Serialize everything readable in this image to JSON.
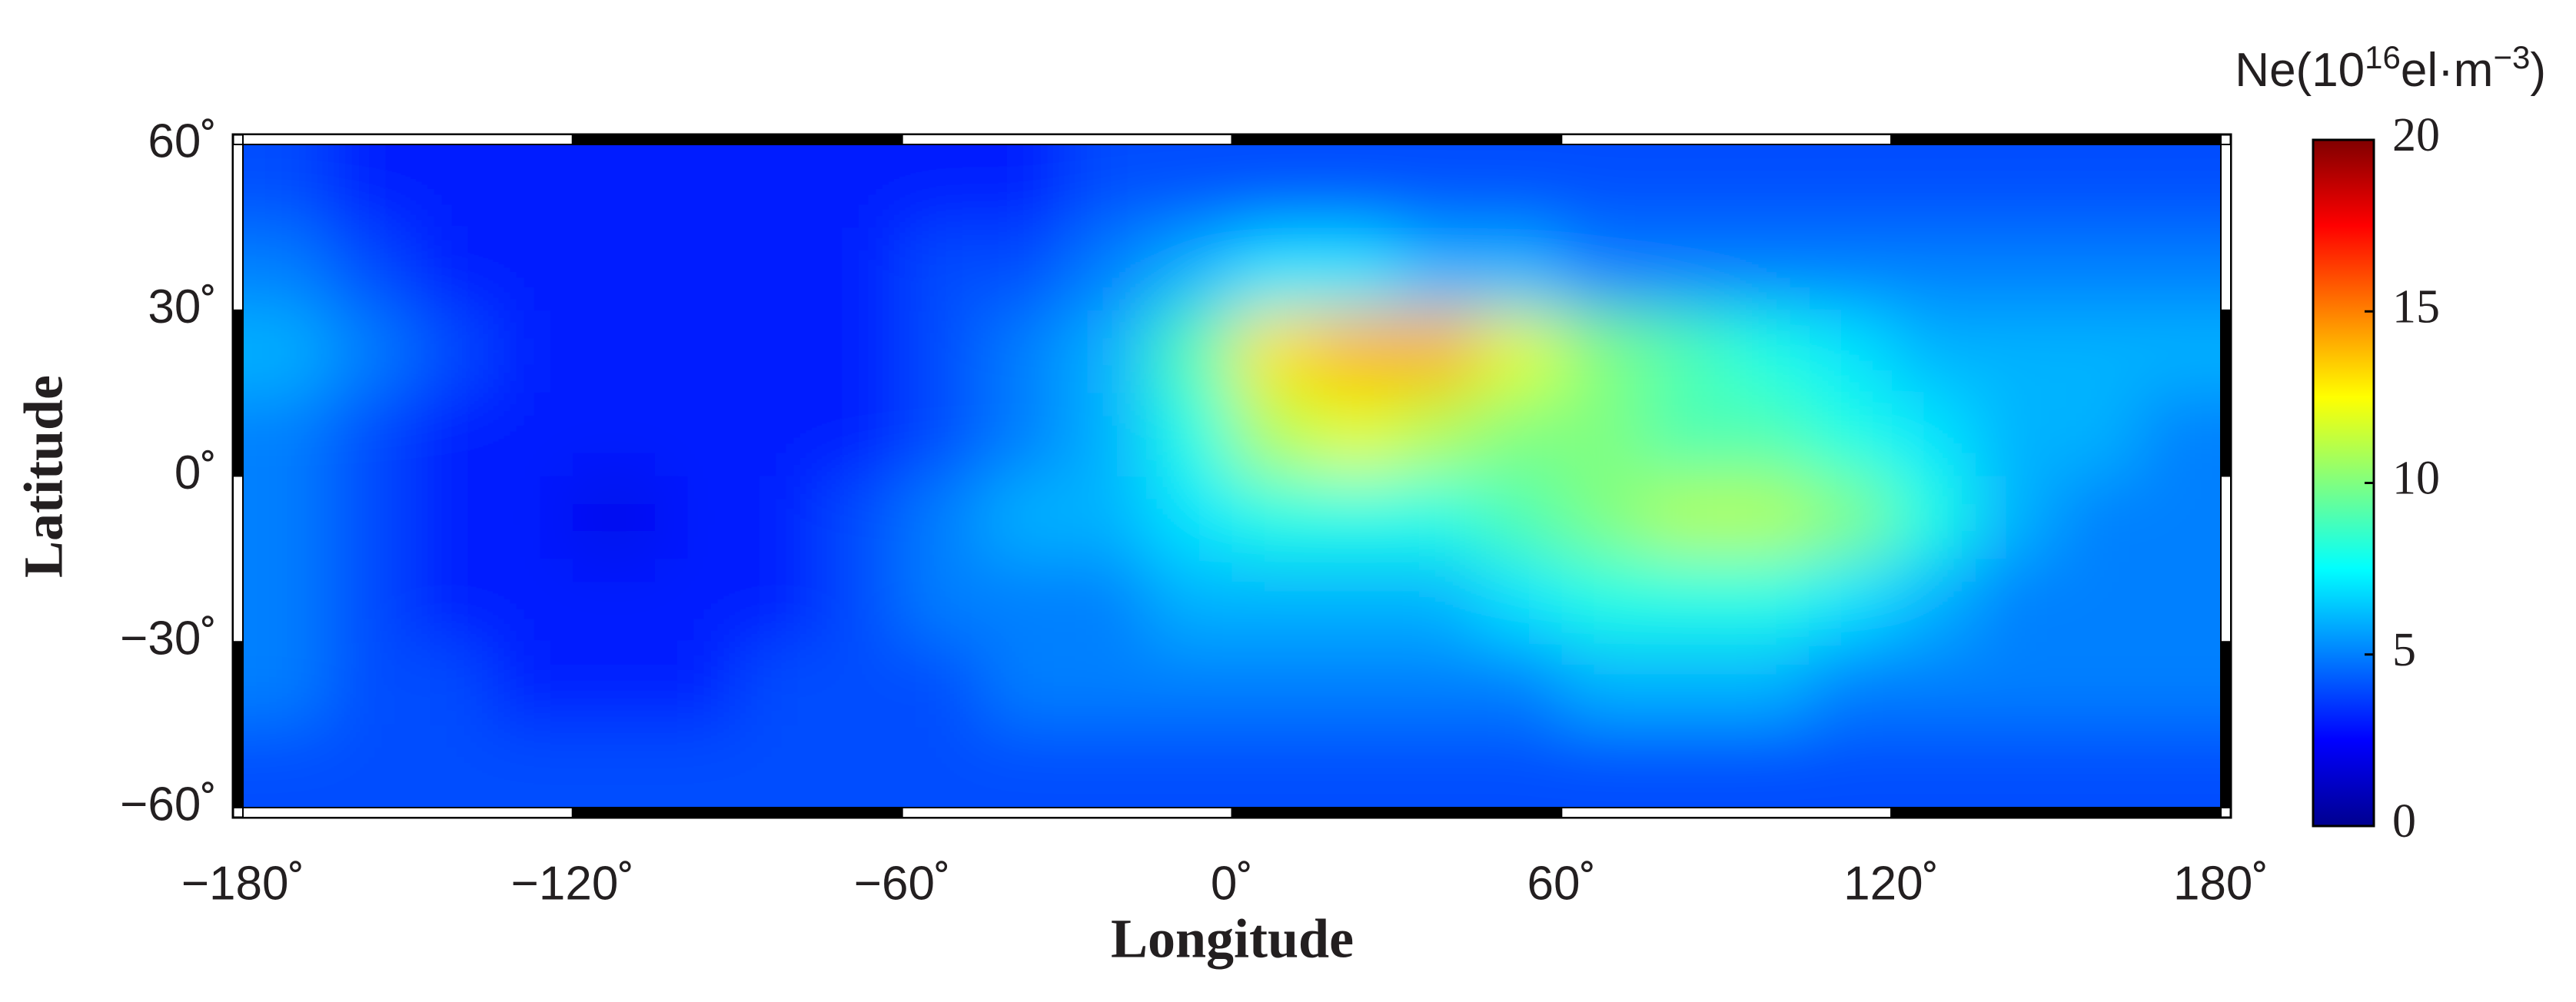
{
  "chart_data": {
    "type": "heatmap",
    "xlabel": "Longitude",
    "ylabel": "Latitude",
    "colorbar_title": [
      "Ne(10",
      "16",
      "el·m",
      "−3",
      ")"
    ],
    "xlim": [
      -180,
      180
    ],
    "xticks": [
      {
        "value": -180,
        "label": "−180˚"
      },
      {
        "value": -120,
        "label": "−120˚"
      },
      {
        "value": -60,
        "label": "−60˚"
      },
      {
        "value": 0,
        "label": "0˚"
      },
      {
        "value": 60,
        "label": "60˚"
      },
      {
        "value": 120,
        "label": "120˚"
      },
      {
        "value": 180,
        "label": "180˚"
      }
    ],
    "ylim": [
      -60,
      60
    ],
    "yticks": [
      {
        "value": -60,
        "label": "−60˚"
      },
      {
        "value": -30,
        "label": "−30˚"
      },
      {
        "value": 0,
        "label": "0˚"
      },
      {
        "value": 30,
        "label": "30˚"
      },
      {
        "value": 60,
        "label": "60˚"
      }
    ],
    "clim": [
      0,
      20
    ],
    "cticks": [
      0,
      5,
      10,
      15,
      20
    ],
    "colormap": [
      "#00008f",
      "#0000ff",
      "#0080ff",
      "#00ffff",
      "#80ff80",
      "#ffff00",
      "#ff8000",
      "#ff0000",
      "#800000"
    ],
    "lon_bins": [
      -180,
      -165,
      -150,
      -135,
      -120,
      -105,
      -90,
      -75,
      -60,
      -45,
      -30,
      -15,
      0,
      15,
      30,
      45,
      60,
      75,
      90,
      105,
      120,
      135,
      150,
      165,
      180
    ],
    "lat_bins": [
      60,
      45,
      30,
      15,
      0,
      -15,
      -30,
      -45,
      -60
    ],
    "values": [
      [
        4,
        3,
        3,
        3,
        3,
        3,
        3,
        3,
        3,
        3,
        4,
        4,
        4,
        4,
        4,
        4,
        4,
        4,
        4,
        4,
        4,
        4,
        4,
        4
      ],
      [
        5,
        4,
        3,
        3,
        3,
        3,
        3,
        3,
        4,
        4,
        5,
        6,
        7,
        7,
        6,
        6,
        5,
        5,
        5,
        5,
        5,
        5,
        5,
        5
      ],
      [
        6,
        5,
        4,
        3,
        3,
        3,
        3,
        3,
        4,
        5,
        6,
        9,
        13,
        14,
        14,
        12,
        10,
        9,
        8,
        7,
        6,
        6,
        6,
        6
      ],
      [
        5,
        4,
        3,
        3,
        3,
        3,
        3,
        3,
        4,
        5,
        6,
        8,
        11,
        12,
        11,
        10,
        10,
        9,
        9,
        8,
        7,
        6,
        6,
        5
      ],
      [
        5,
        4,
        3,
        3,
        2,
        3,
        3,
        4,
        5,
        6,
        6,
        7,
        8,
        8,
        8,
        9,
        10,
        11,
        11,
        10,
        8,
        6,
        5,
        5
      ],
      [
        5,
        4,
        3,
        3,
        3,
        3,
        3,
        4,
        5,
        5,
        5,
        6,
        6,
        6,
        6,
        7,
        8,
        8,
        8,
        7,
        6,
        5,
        5,
        5
      ],
      [
        5,
        4,
        4,
        3,
        3,
        3,
        4,
        4,
        4,
        5,
        5,
        5,
        5,
        5,
        5,
        5,
        6,
        6,
        6,
        5,
        5,
        5,
        5,
        5
      ],
      [
        4,
        4,
        4,
        4,
        4,
        4,
        4,
        4,
        4,
        4,
        4,
        4,
        4,
        4,
        4,
        4,
        4,
        4,
        4,
        4,
        4,
        4,
        4,
        4
      ]
    ]
  }
}
